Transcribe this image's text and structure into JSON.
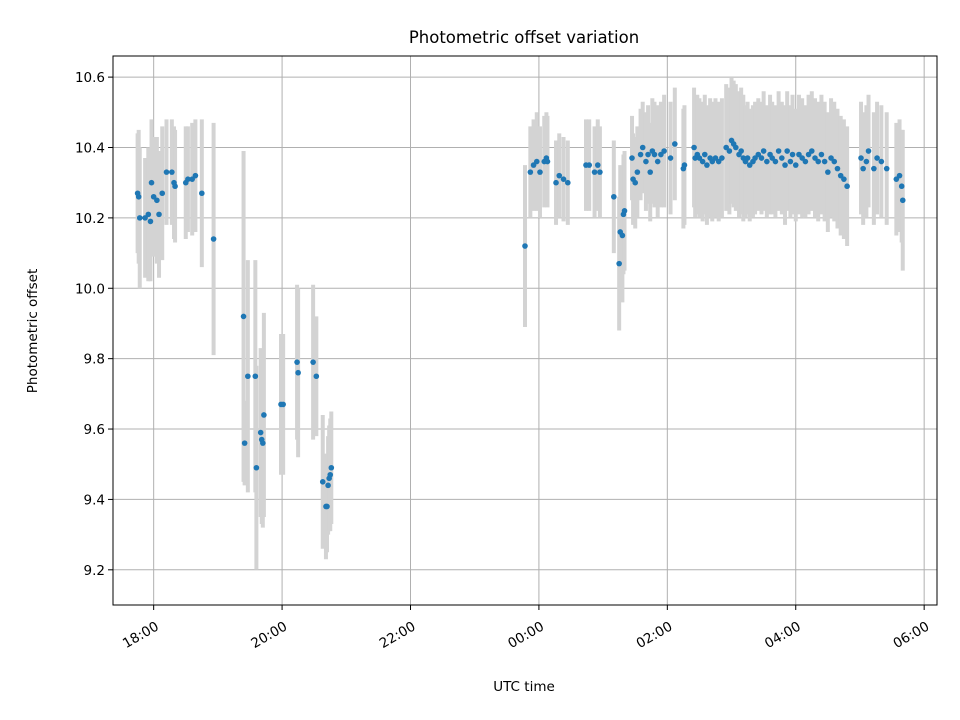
{
  "chart_data": {
    "type": "scatter",
    "title": "Photometric offset variation",
    "xlabel": "UTC time",
    "ylabel": "Photometric offset",
    "x_axis_kind": "time (day 1 evening to day 2 morning)",
    "xlim": [
      "17:22",
      "06:12"
    ],
    "ylim": [
      9.1,
      10.66
    ],
    "x_ticks": [
      "18:00",
      "20:00",
      "22:00",
      "00:00",
      "02:00",
      "04:00",
      "06:00"
    ],
    "y_ticks": [
      "9.2",
      "9.4",
      "9.6",
      "9.8",
      "10.0",
      "10.2",
      "10.4",
      "10.6"
    ],
    "grid": true,
    "marker_color": "#1f77b4",
    "errorbar_color": "#d3d3d3",
    "series": [
      {
        "points": [
          {
            "t": "17:45",
            "y": 10.27,
            "err": 0.17
          },
          {
            "t": "17:46",
            "y": 10.26,
            "err": 0.19
          },
          {
            "t": "17:47",
            "y": 10.2,
            "err": 0.2
          },
          {
            "t": "17:52",
            "y": 10.2,
            "err": 0.17
          },
          {
            "t": "17:55",
            "y": 10.21,
            "err": 0.19
          },
          {
            "t": "17:57",
            "y": 10.19,
            "err": 0.17
          },
          {
            "t": "17:58",
            "y": 10.3,
            "err": 0.18
          },
          {
            "t": "18:00",
            "y": 10.26,
            "err": 0.17
          },
          {
            "t": "18:03",
            "y": 10.25,
            "err": 0.18
          },
          {
            "t": "18:05",
            "y": 10.21,
            "err": 0.18
          },
          {
            "t": "18:08",
            "y": 10.27,
            "err": 0.19
          },
          {
            "t": "18:12",
            "y": 10.33,
            "err": 0.15
          },
          {
            "t": "18:17",
            "y": 10.33,
            "err": 0.15
          },
          {
            "t": "18:19",
            "y": 10.3,
            "err": 0.16
          },
          {
            "t": "18:20",
            "y": 10.29,
            "err": 0.16
          },
          {
            "t": "18:30",
            "y": 10.3,
            "err": 0.16
          },
          {
            "t": "18:32",
            "y": 10.31,
            "err": 0.15
          },
          {
            "t": "18:36",
            "y": 10.31,
            "err": 0.16
          },
          {
            "t": "18:39",
            "y": 10.32,
            "err": 0.16
          },
          {
            "t": "18:45",
            "y": 10.27,
            "err": 0.21
          },
          {
            "t": "18:56",
            "y": 10.14,
            "err": 0.33
          },
          {
            "t": "19:24",
            "y": 9.92,
            "err": 0.47
          },
          {
            "t": "19:25",
            "y": 9.56,
            "err": 0.12
          },
          {
            "t": "19:28",
            "y": 9.75,
            "err": 0.33
          },
          {
            "t": "19:35",
            "y": 9.75,
            "err": 0.33
          },
          {
            "t": "19:36",
            "y": 9.49,
            "err": 0.29
          },
          {
            "t": "19:40",
            "y": 9.59,
            "err": 0.24
          },
          {
            "t": "19:41",
            "y": 9.57,
            "err": 0.24
          },
          {
            "t": "19:42",
            "y": 9.56,
            "err": 0.24
          },
          {
            "t": "19:43",
            "y": 9.64,
            "err": 0.29
          },
          {
            "t": "19:59",
            "y": 9.67,
            "err": 0.2
          },
          {
            "t": "20:01",
            "y": 9.67,
            "err": 0.2
          },
          {
            "t": "20:14",
            "y": 9.79,
            "err": 0.22
          },
          {
            "t": "20:15",
            "y": 9.76,
            "err": 0.24
          },
          {
            "t": "20:29",
            "y": 9.79,
            "err": 0.22
          },
          {
            "t": "20:32",
            "y": 9.75,
            "err": 0.17
          },
          {
            "t": "20:38",
            "y": 9.45,
            "err": 0.19
          },
          {
            "t": "20:41",
            "y": 9.38,
            "err": 0.15
          },
          {
            "t": "20:42",
            "y": 9.38,
            "err": 0.13
          },
          {
            "t": "20:43",
            "y": 9.44,
            "err": 0.14
          },
          {
            "t": "20:44",
            "y": 9.46,
            "err": 0.15
          },
          {
            "t": "20:45",
            "y": 9.47,
            "err": 0.16
          },
          {
            "t": "20:46",
            "y": 9.49,
            "err": 0.16
          },
          {
            "t": "23:47",
            "y": 10.12,
            "err": 0.23
          },
          {
            "t": "23:52",
            "y": 10.33,
            "err": 0.13
          },
          {
            "t": "23:55",
            "y": 10.35,
            "err": 0.13
          },
          {
            "t": "23:58",
            "y": 10.36,
            "err": 0.14
          },
          {
            "t": "00:01",
            "y": 10.33,
            "err": 0.13
          },
          {
            "t": "00:05",
            "y": 10.36,
            "err": 0.13
          },
          {
            "t": "00:07",
            "y": 10.37,
            "err": 0.13
          },
          {
            "t": "00:08",
            "y": 10.36,
            "err": 0.13
          },
          {
            "t": "00:16",
            "y": 10.3,
            "err": 0.12
          },
          {
            "t": "00:19",
            "y": 10.32,
            "err": 0.12
          },
          {
            "t": "00:23",
            "y": 10.31,
            "err": 0.12
          },
          {
            "t": "00:27",
            "y": 10.3,
            "err": 0.12
          },
          {
            "t": "00:44",
            "y": 10.35,
            "err": 0.13
          },
          {
            "t": "00:47",
            "y": 10.35,
            "err": 0.13
          },
          {
            "t": "00:52",
            "y": 10.33,
            "err": 0.13
          },
          {
            "t": "00:55",
            "y": 10.35,
            "err": 0.13
          },
          {
            "t": "00:57",
            "y": 10.33,
            "err": 0.13
          },
          {
            "t": "01:10",
            "y": 10.26,
            "err": 0.16
          },
          {
            "t": "01:15",
            "y": 10.07,
            "err": 0.19
          },
          {
            "t": "01:16",
            "y": 10.16,
            "err": 0.19
          },
          {
            "t": "01:18",
            "y": 10.15,
            "err": 0.19
          },
          {
            "t": "01:19",
            "y": 10.21,
            "err": 0.17
          },
          {
            "t": "01:20",
            "y": 10.22,
            "err": 0.17
          },
          {
            "t": "01:27",
            "y": 10.37,
            "err": 0.12
          },
          {
            "t": "01:28",
            "y": 10.31,
            "err": 0.13
          },
          {
            "t": "01:30",
            "y": 10.3,
            "err": 0.13
          },
          {
            "t": "01:32",
            "y": 10.33,
            "err": 0.13
          },
          {
            "t": "01:35",
            "y": 10.38,
            "err": 0.13
          },
          {
            "t": "01:37",
            "y": 10.4,
            "err": 0.13
          },
          {
            "t": "01:40",
            "y": 10.36,
            "err": 0.14
          },
          {
            "t": "01:42",
            "y": 10.38,
            "err": 0.14
          },
          {
            "t": "01:44",
            "y": 10.33,
            "err": 0.14
          },
          {
            "t": "01:46",
            "y": 10.39,
            "err": 0.15
          },
          {
            "t": "01:48",
            "y": 10.38,
            "err": 0.15
          },
          {
            "t": "01:51",
            "y": 10.36,
            "err": 0.16
          },
          {
            "t": "01:54",
            "y": 10.38,
            "err": 0.15
          },
          {
            "t": "01:57",
            "y": 10.39,
            "err": 0.16
          },
          {
            "t": "02:03",
            "y": 10.37,
            "err": 0.16
          },
          {
            "t": "02:07",
            "y": 10.41,
            "err": 0.16
          },
          {
            "t": "02:15",
            "y": 10.34,
            "err": 0.17
          },
          {
            "t": "02:16",
            "y": 10.35,
            "err": 0.17
          },
          {
            "t": "02:25",
            "y": 10.4,
            "err": 0.17
          },
          {
            "t": "02:26",
            "y": 10.37,
            "err": 0.17
          },
          {
            "t": "02:28",
            "y": 10.38,
            "err": 0.17
          },
          {
            "t": "02:30",
            "y": 10.37,
            "err": 0.17
          },
          {
            "t": "02:33",
            "y": 10.36,
            "err": 0.17
          },
          {
            "t": "02:35",
            "y": 10.38,
            "err": 0.17
          },
          {
            "t": "02:37",
            "y": 10.35,
            "err": 0.17
          },
          {
            "t": "02:40",
            "y": 10.37,
            "err": 0.17
          },
          {
            "t": "02:42",
            "y": 10.36,
            "err": 0.17
          },
          {
            "t": "02:45",
            "y": 10.37,
            "err": 0.17
          },
          {
            "t": "02:48",
            "y": 10.36,
            "err": 0.17
          },
          {
            "t": "02:51",
            "y": 10.37,
            "err": 0.17
          },
          {
            "t": "02:55",
            "y": 10.4,
            "err": 0.18
          },
          {
            "t": "02:58",
            "y": 10.39,
            "err": 0.18
          },
          {
            "t": "03:00",
            "y": 10.42,
            "err": 0.18
          },
          {
            "t": "03:02",
            "y": 10.41,
            "err": 0.18
          },
          {
            "t": "03:04",
            "y": 10.4,
            "err": 0.18
          },
          {
            "t": "03:07",
            "y": 10.38,
            "err": 0.18
          },
          {
            "t": "03:09",
            "y": 10.39,
            "err": 0.18
          },
          {
            "t": "03:11",
            "y": 10.37,
            "err": 0.18
          },
          {
            "t": "03:13",
            "y": 10.36,
            "err": 0.16
          },
          {
            "t": "03:15",
            "y": 10.37,
            "err": 0.16
          },
          {
            "t": "03:17",
            "y": 10.35,
            "err": 0.16
          },
          {
            "t": "03:20",
            "y": 10.36,
            "err": 0.16
          },
          {
            "t": "03:22",
            "y": 10.37,
            "err": 0.16
          },
          {
            "t": "03:25",
            "y": 10.38,
            "err": 0.16
          },
          {
            "t": "03:28",
            "y": 10.37,
            "err": 0.16
          },
          {
            "t": "03:30",
            "y": 10.39,
            "err": 0.17
          },
          {
            "t": "03:33",
            "y": 10.36,
            "err": 0.16
          },
          {
            "t": "03:36",
            "y": 10.38,
            "err": 0.17
          },
          {
            "t": "03:38",
            "y": 10.37,
            "err": 0.16
          },
          {
            "t": "03:41",
            "y": 10.36,
            "err": 0.16
          },
          {
            "t": "03:44",
            "y": 10.39,
            "err": 0.17
          },
          {
            "t": "03:47",
            "y": 10.37,
            "err": 0.16
          },
          {
            "t": "03:50",
            "y": 10.35,
            "err": 0.17
          },
          {
            "t": "03:52",
            "y": 10.39,
            "err": 0.17
          },
          {
            "t": "03:55",
            "y": 10.36,
            "err": 0.16
          },
          {
            "t": "03:57",
            "y": 10.38,
            "err": 0.17
          },
          {
            "t": "04:00",
            "y": 10.35,
            "err": 0.16
          },
          {
            "t": "04:03",
            "y": 10.38,
            "err": 0.17
          },
          {
            "t": "04:06",
            "y": 10.37,
            "err": 0.17
          },
          {
            "t": "04:09",
            "y": 10.36,
            "err": 0.16
          },
          {
            "t": "04:12",
            "y": 10.38,
            "err": 0.17
          },
          {
            "t": "04:15",
            "y": 10.39,
            "err": 0.17
          },
          {
            "t": "04:18",
            "y": 10.37,
            "err": 0.17
          },
          {
            "t": "04:21",
            "y": 10.36,
            "err": 0.17
          },
          {
            "t": "04:24",
            "y": 10.38,
            "err": 0.17
          },
          {
            "t": "04:27",
            "y": 10.36,
            "err": 0.17
          },
          {
            "t": "04:30",
            "y": 10.33,
            "err": 0.17
          },
          {
            "t": "04:33",
            "y": 10.37,
            "err": 0.17
          },
          {
            "t": "04:36",
            "y": 10.36,
            "err": 0.17
          },
          {
            "t": "04:39",
            "y": 10.34,
            "err": 0.17
          },
          {
            "t": "04:42",
            "y": 10.32,
            "err": 0.17
          },
          {
            "t": "04:45",
            "y": 10.31,
            "err": 0.17
          },
          {
            "t": "04:48",
            "y": 10.29,
            "err": 0.17
          },
          {
            "t": "05:01",
            "y": 10.37,
            "err": 0.16
          },
          {
            "t": "05:03",
            "y": 10.34,
            "err": 0.16
          },
          {
            "t": "05:06",
            "y": 10.36,
            "err": 0.16
          },
          {
            "t": "05:08",
            "y": 10.39,
            "err": 0.16
          },
          {
            "t": "05:13",
            "y": 10.34,
            "err": 0.16
          },
          {
            "t": "05:16",
            "y": 10.37,
            "err": 0.16
          },
          {
            "t": "05:20",
            "y": 10.36,
            "err": 0.16
          },
          {
            "t": "05:25",
            "y": 10.34,
            "err": 0.16
          },
          {
            "t": "05:34",
            "y": 10.31,
            "err": 0.16
          },
          {
            "t": "05:37",
            "y": 10.32,
            "err": 0.16
          },
          {
            "t": "05:39",
            "y": 10.29,
            "err": 0.16
          },
          {
            "t": "05:40",
            "y": 10.25,
            "err": 0.2
          }
        ]
      }
    ]
  }
}
